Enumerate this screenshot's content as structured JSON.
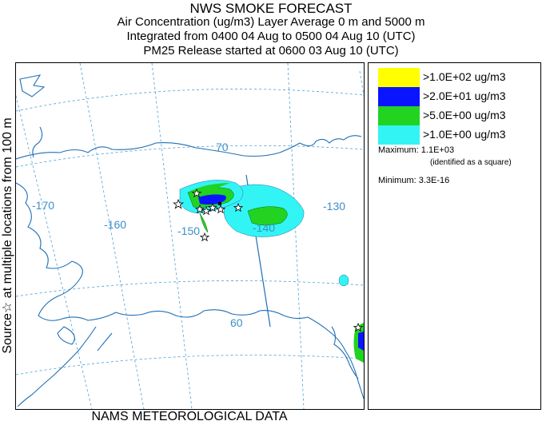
{
  "title": {
    "line1": "NWS SMOKE FORECAST",
    "line2": "Air Concentration (ug/m3) Layer Average    0 m and  5000 m",
    "line3": "Integrated from 0400 04 Aug to 0500 04 Aug 10 (UTC)",
    "line4": "PM25 Release started at 0600 03 Aug 10 (UTC)"
  },
  "left_label": "Source☆  at multiple locations    from   100 m",
  "bottom_label": "NAMS METEOROLOGICAL DATA",
  "map": {
    "grid_labels": {
      "lon_170": "-170",
      "lon_160": "-160",
      "lon_150": "-150",
      "lon_140": "-140",
      "lon_130": "-130",
      "lat_70": "70",
      "lat_60": "60"
    },
    "colors": {
      "coast": "#1f6fb5",
      "grid": "#4a9fd4",
      "label": "#3d8fc8"
    }
  },
  "legend": {
    "levels": [
      {
        "label": ">1.0E+02 ug/m3",
        "color": "#ffff00"
      },
      {
        "label": ">2.0E+01 ug/m3",
        "color": "#0a14ff"
      },
      {
        "label": ">5.0E+00 ug/m3",
        "color": "#22d322"
      },
      {
        "label": ">1.0E+00 ug/m3",
        "color": "#33f4f4"
      }
    ],
    "maximum": "Maximum: 1.1E+03",
    "maximum_note": "(identified as a square)",
    "minimum": "Minimum: 3.3E-16"
  }
}
